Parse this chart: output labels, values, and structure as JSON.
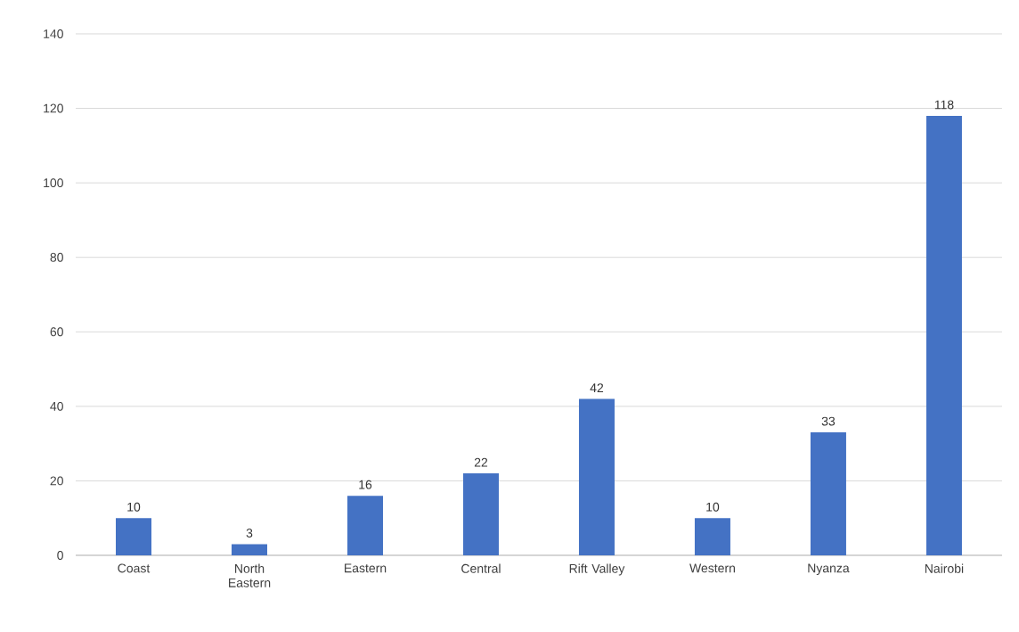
{
  "chart_data": {
    "type": "bar",
    "categories": [
      "Coast",
      "North Eastern",
      "Eastern",
      "Central",
      "Rift Valley",
      "Western",
      "Nyanza",
      "Nairobi"
    ],
    "values": [
      10,
      3,
      16,
      22,
      42,
      10,
      33,
      118
    ],
    "color": "#4472c4",
    "ylim": [
      0,
      140
    ],
    "yticks": [
      0,
      20,
      40,
      60,
      80,
      100,
      120,
      140
    ],
    "grid": "y",
    "data_labels": true
  }
}
